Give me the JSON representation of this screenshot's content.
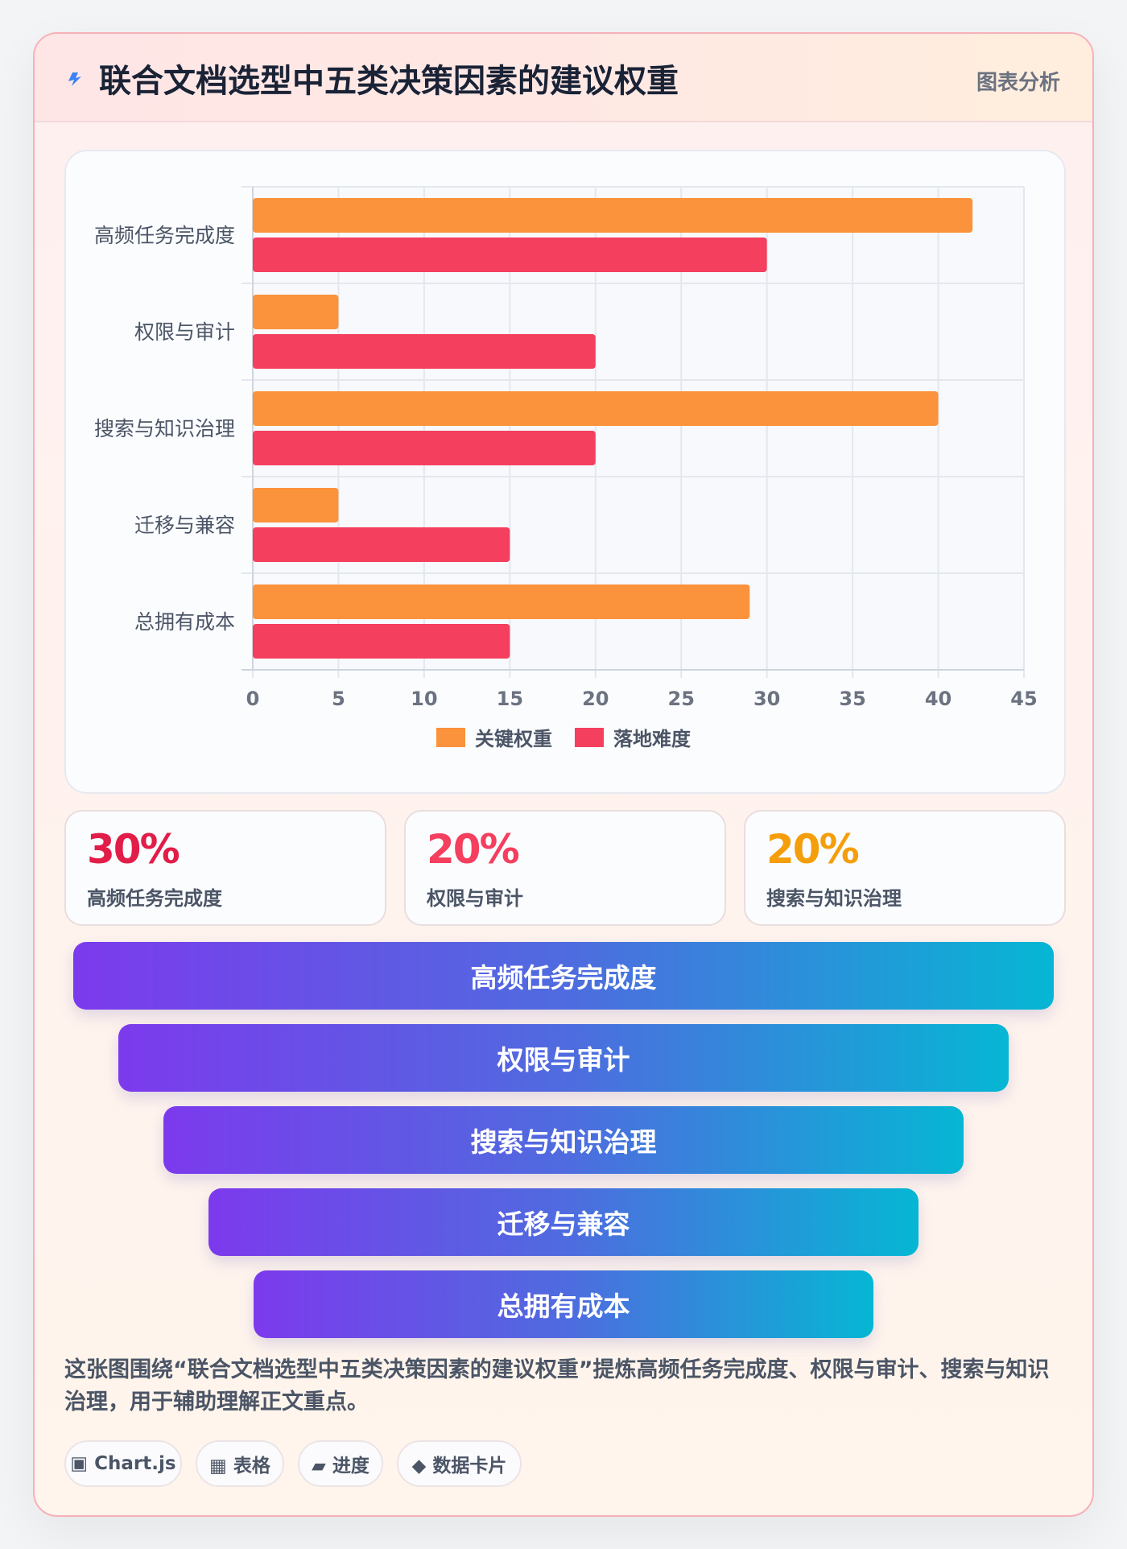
{
  "header": {
    "title": "联合文档选型中五类决策因素的建议权重",
    "tag": "图表分析"
  },
  "colors": {
    "weight": "#fb923c",
    "difficulty": "#f43f5e",
    "bolt": "#3b82f6"
  },
  "chart_data": {
    "type": "bar",
    "orientation": "horizontal",
    "categories": [
      "高频任务完成度",
      "权限与审计",
      "搜索与知识治理",
      "迁移与兼容",
      "总拥有成本"
    ],
    "series": [
      {
        "name": "关键权重",
        "color": "#fb923c",
        "values": [
          42,
          5,
          40,
          5,
          29
        ]
      },
      {
        "name": "落地难度",
        "color": "#f43f5e",
        "values": [
          30,
          20,
          20,
          15,
          15
        ]
      }
    ],
    "xlim": [
      0,
      45
    ],
    "xticks": [
      0,
      5,
      10,
      15,
      20,
      25,
      30,
      35,
      40,
      45
    ],
    "grid": true,
    "legend": "bottom"
  },
  "stats": [
    {
      "value": "30%",
      "label": "高频任务完成度",
      "color": "#e11d48"
    },
    {
      "value": "20%",
      "label": "权限与审计",
      "color": "#f43f5e"
    },
    {
      "value": "20%",
      "label": "搜索与知识治理",
      "color": "#f59e0b"
    }
  ],
  "funnel": [
    "高频任务完成度",
    "权限与审计",
    "搜索与知识治理",
    "迁移与兼容",
    "总拥有成本"
  ],
  "description": "这张图围绕“联合文档选型中五类决策因素的建议权重”提炼高频任务完成度、权限与审计、搜索与知识治理，用于辅助理解正文重点。",
  "chips": [
    "▣ Chart.js",
    "▦ 表格",
    "▰ 进度",
    "◆ 数据卡片"
  ]
}
